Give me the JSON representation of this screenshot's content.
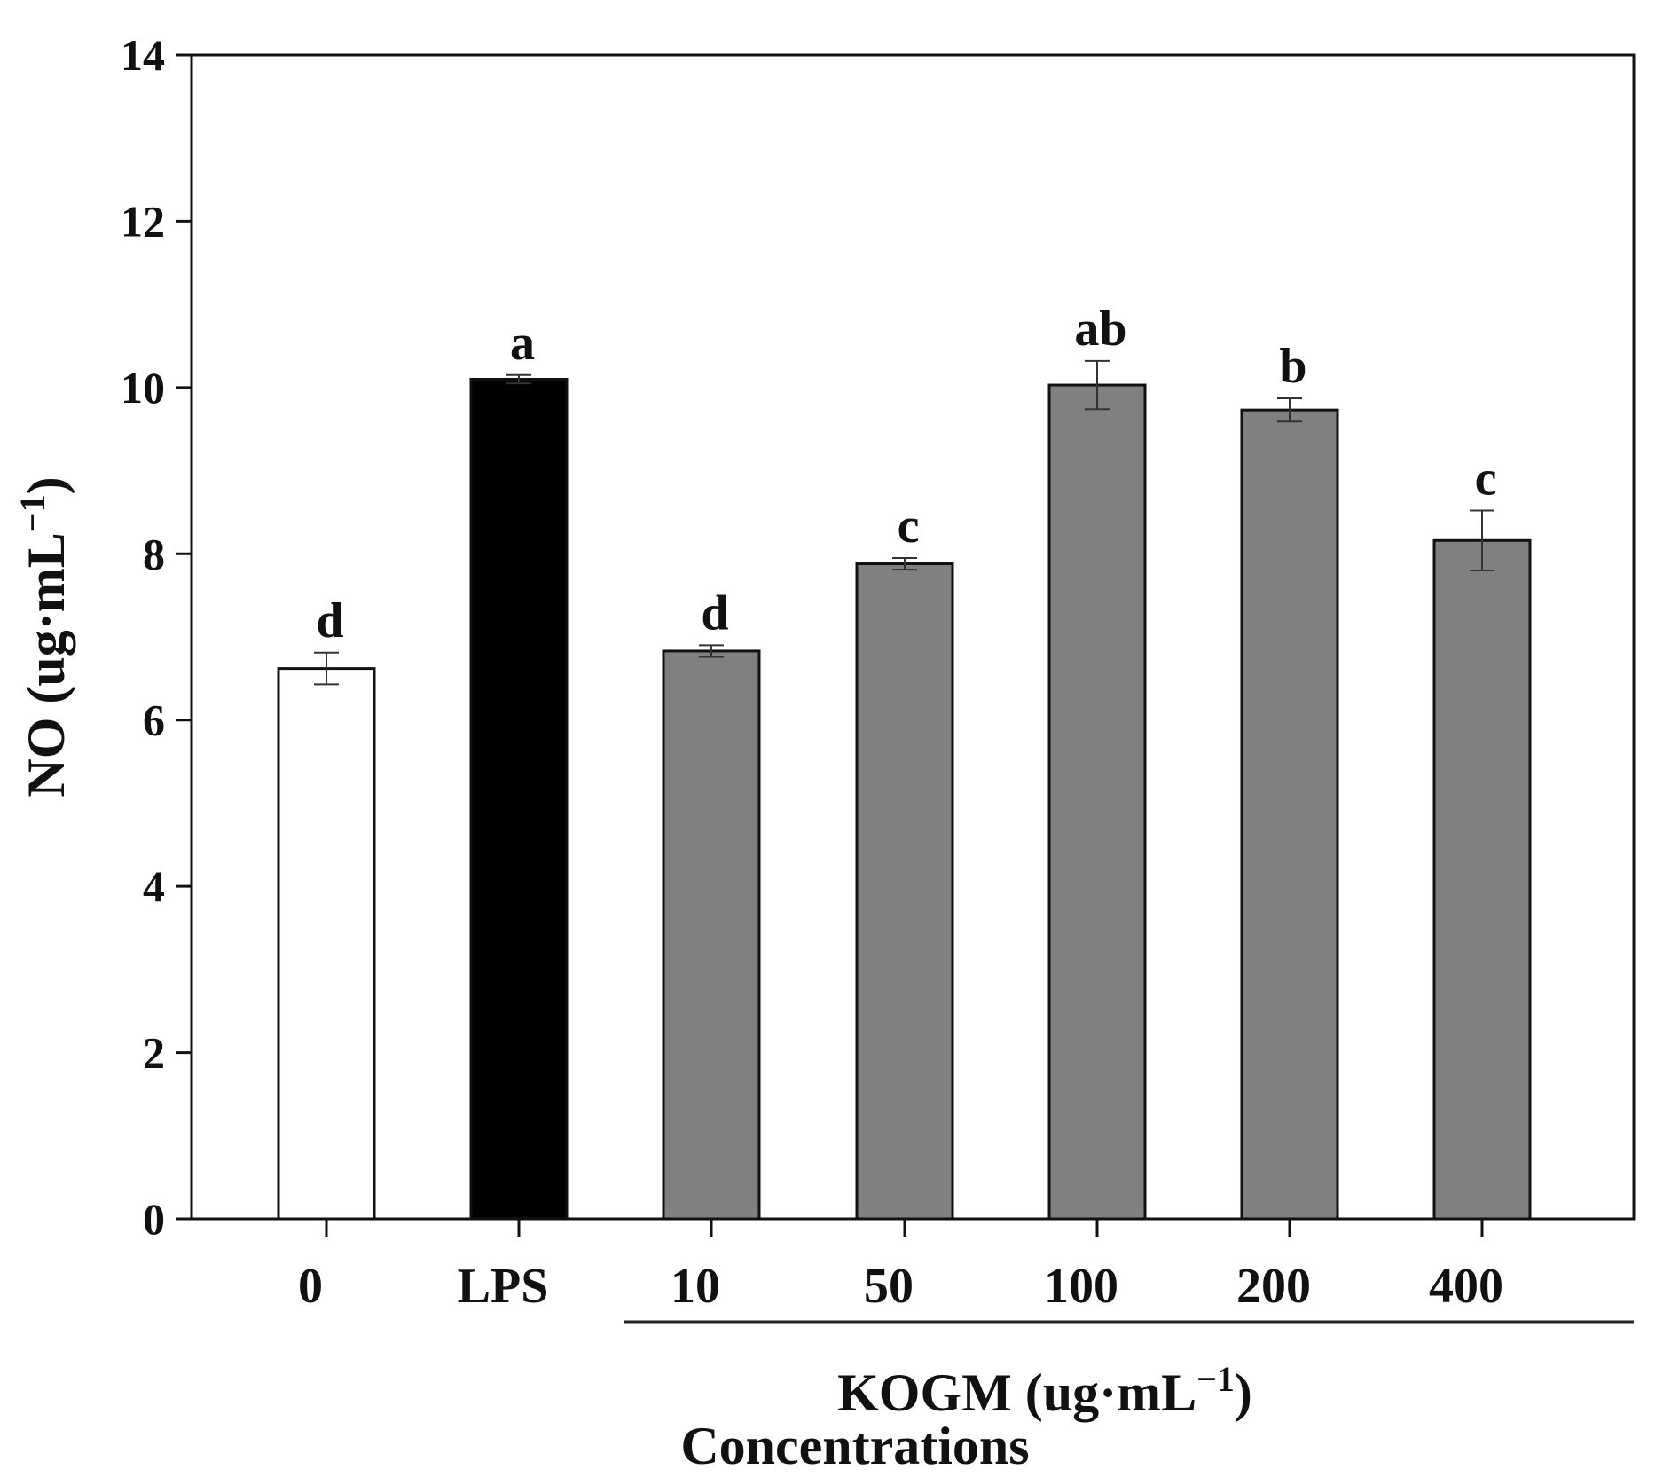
{
  "chart_data": {
    "type": "bar",
    "title": "",
    "ylabel": "NO (ug·mL",
    "ylabel_sup": "−1",
    "ylabel_close": ")",
    "xlabel": "Concentrations",
    "group_label": "KOGM (ug·mL",
    "group_label_sup": "−1",
    "group_label_close": ")",
    "group_members": [
      "10",
      "50",
      "100",
      "200",
      "400"
    ],
    "ylim": [
      0,
      14
    ],
    "yticks": [
      0,
      2,
      4,
      6,
      8,
      10,
      12,
      14
    ],
    "categories": [
      "0",
      "LPS",
      "10",
      "50",
      "100",
      "200",
      "400"
    ],
    "values": [
      6.62,
      10.1,
      6.83,
      7.88,
      10.03,
      9.73,
      8.16
    ],
    "errors": [
      0.19,
      0.05,
      0.07,
      0.07,
      0.29,
      0.14,
      0.36
    ],
    "significance": [
      "d",
      "a",
      "d",
      "c",
      "ab",
      "b",
      "c"
    ],
    "colors": [
      "#ffffff",
      "#000000",
      "#808080",
      "#808080",
      "#808080",
      "#808080",
      "#808080"
    ],
    "grid": false
  }
}
